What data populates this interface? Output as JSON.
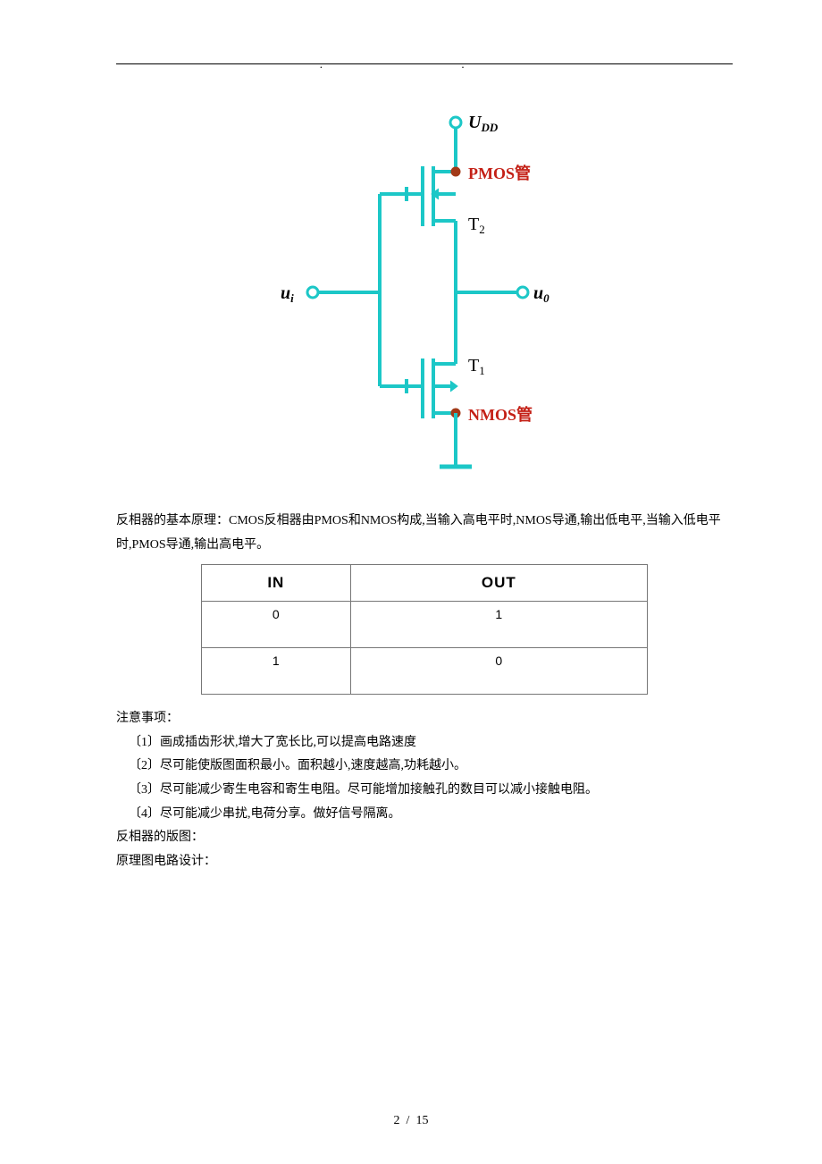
{
  "circuit": {
    "colors": {
      "wire": "#1cc7c7",
      "label_red": "#c42016",
      "dot_fill": "#a23a18",
      "terminal_stroke": "#1cc7c7",
      "bg": "#ffffff"
    },
    "stroke_width": 4,
    "terminal_radius": 6,
    "dot_radius": 5.5,
    "labels": {
      "udd_main": "U",
      "udd_sub": "DD",
      "ui_main": "u",
      "ui_sub": "i",
      "uo_main": "u",
      "uo_sub": "0",
      "t2_main": "T",
      "t2_sub": "2",
      "t1_main": "T",
      "t1_sub": "1",
      "pmos": "PMOS管",
      "nmos": "NMOS管"
    }
  },
  "text": {
    "principle": "反相器的基本原理：CMOS反相器由PMOS和NMOS构成,当输入高电平时,NMOS导通,输出低电平,当输入低电平时,PMOS导通,输出高电平。",
    "notes_title": "注意事项：",
    "notes": [
      "〔1〕画成插齿形状,增大了宽长比,可以提高电路速度",
      "〔2〕尽可能使版图面积最小。面积越小,速度越高,功耗越小。",
      "〔3〕尽可能减少寄生电容和寄生电阻。尽可能增加接触孔的数目可以减小接触电阻。",
      "〔4〕尽可能减少串扰,电荷分享。做好信号隔离。"
    ],
    "layout_label": "反相器的版图：",
    "schematic_label": "原理图电路设计："
  },
  "table": {
    "headers": [
      "IN",
      "OUT"
    ],
    "rows": [
      [
        "0",
        "1"
      ],
      [
        "1",
        "0"
      ]
    ]
  },
  "footer": {
    "page": "2",
    "sep": "/",
    "total": "15"
  }
}
